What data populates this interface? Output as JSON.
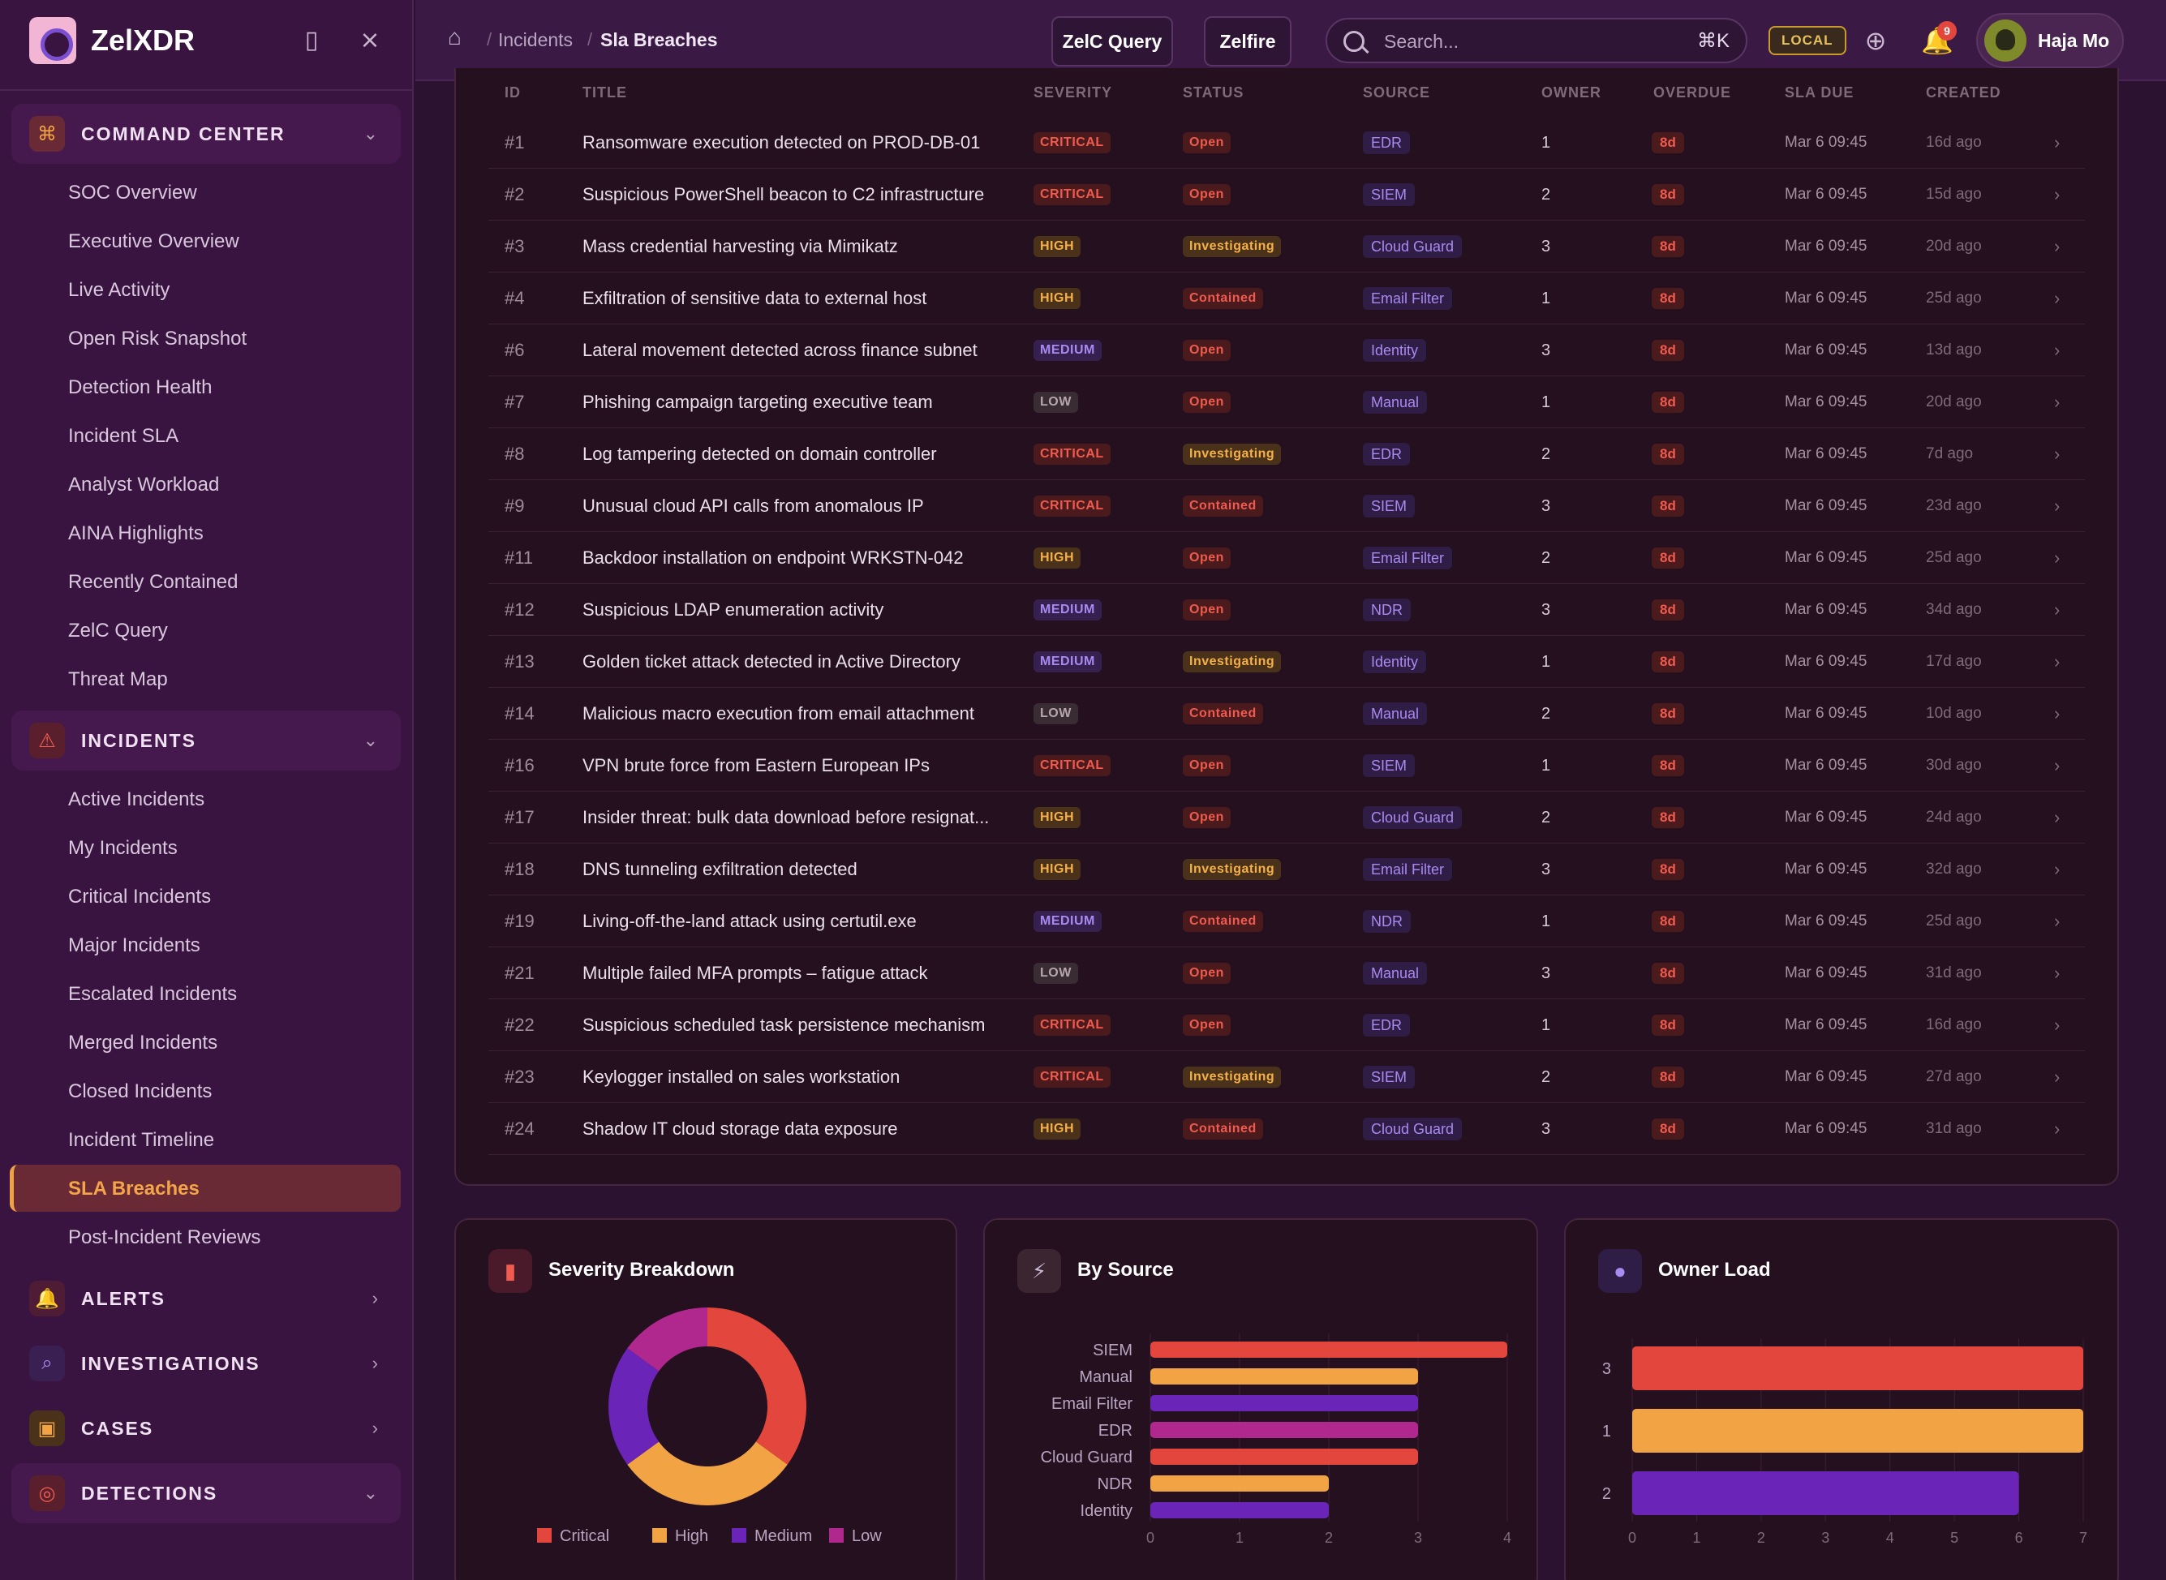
{
  "brand": {
    "name": "ZelXDR"
  },
  "breadcrumb": {
    "section": "Incidents",
    "current": "Sla Breaches"
  },
  "topbar": {
    "query_button": "ZelC Query",
    "zelfire_button": "Zelfire",
    "search_placeholder": "Search...",
    "search_shortcut": "⌘K",
    "env_badge": "LOCAL",
    "notification_count": "9",
    "user_name": "Haja Mo"
  },
  "sidebar": {
    "command_center": {
      "label": "COMMAND CENTER",
      "items": [
        "SOC Overview",
        "Executive Overview",
        "Live Activity",
        "Open Risk Snapshot",
        "Detection Health",
        "Incident SLA",
        "Analyst Workload",
        "AINA Highlights",
        "Recently Contained",
        "ZelC Query",
        "Threat Map"
      ]
    },
    "incidents": {
      "label": "INCIDENTS",
      "items": [
        "Active Incidents",
        "My Incidents",
        "Critical Incidents",
        "Major Incidents",
        "Escalated Incidents",
        "Merged Incidents",
        "Closed Incidents",
        "Incident Timeline",
        "SLA Breaches",
        "Post-Incident Reviews"
      ],
      "active": "SLA Breaches"
    },
    "alerts": {
      "label": "ALERTS"
    },
    "investigations": {
      "label": "INVESTIGATIONS"
    },
    "cases": {
      "label": "CASES"
    },
    "detections": {
      "label": "DETECTIONS"
    }
  },
  "table": {
    "columns": [
      "ID",
      "TITLE",
      "SEVERITY",
      "STATUS",
      "SOURCE",
      "OWNER",
      "OVERDUE",
      "SLA DUE",
      "CREATED"
    ],
    "rows": [
      {
        "id": "#1",
        "title": "Ransomware execution detected on PROD-DB-01",
        "severity": "CRITICAL",
        "status": "Open",
        "source": "EDR",
        "owner": "1",
        "overdue": "8d",
        "due": "Mar 6 09:45",
        "created": "16d ago"
      },
      {
        "id": "#2",
        "title": "Suspicious PowerShell beacon to C2 infrastructure",
        "severity": "CRITICAL",
        "status": "Open",
        "source": "SIEM",
        "owner": "2",
        "overdue": "8d",
        "due": "Mar 6 09:45",
        "created": "15d ago"
      },
      {
        "id": "#3",
        "title": "Mass credential harvesting via Mimikatz",
        "severity": "HIGH",
        "status": "Investigating",
        "source": "Cloud Guard",
        "owner": "3",
        "overdue": "8d",
        "due": "Mar 6 09:45",
        "created": "20d ago"
      },
      {
        "id": "#4",
        "title": "Exfiltration of sensitive data to external host",
        "severity": "HIGH",
        "status": "Contained",
        "source": "Email Filter",
        "owner": "1",
        "overdue": "8d",
        "due": "Mar 6 09:45",
        "created": "25d ago"
      },
      {
        "id": "#6",
        "title": "Lateral movement detected across finance subnet",
        "severity": "MEDIUM",
        "status": "Open",
        "source": "Identity",
        "owner": "3",
        "overdue": "8d",
        "due": "Mar 6 09:45",
        "created": "13d ago"
      },
      {
        "id": "#7",
        "title": "Phishing campaign targeting executive team",
        "severity": "LOW",
        "status": "Open",
        "source": "Manual",
        "owner": "1",
        "overdue": "8d",
        "due": "Mar 6 09:45",
        "created": "20d ago"
      },
      {
        "id": "#8",
        "title": "Log tampering detected on domain controller",
        "severity": "CRITICAL",
        "status": "Investigating",
        "source": "EDR",
        "owner": "2",
        "overdue": "8d",
        "due": "Mar 6 09:45",
        "created": "7d ago"
      },
      {
        "id": "#9",
        "title": "Unusual cloud API calls from anomalous IP",
        "severity": "CRITICAL",
        "status": "Contained",
        "source": "SIEM",
        "owner": "3",
        "overdue": "8d",
        "due": "Mar 6 09:45",
        "created": "23d ago"
      },
      {
        "id": "#11",
        "title": "Backdoor installation on endpoint WRKSTN-042",
        "severity": "HIGH",
        "status": "Open",
        "source": "Email Filter",
        "owner": "2",
        "overdue": "8d",
        "due": "Mar 6 09:45",
        "created": "25d ago"
      },
      {
        "id": "#12",
        "title": "Suspicious LDAP enumeration activity",
        "severity": "MEDIUM",
        "status": "Open",
        "source": "NDR",
        "owner": "3",
        "overdue": "8d",
        "due": "Mar 6 09:45",
        "created": "34d ago"
      },
      {
        "id": "#13",
        "title": "Golden ticket attack detected in Active Directory",
        "severity": "MEDIUM",
        "status": "Investigating",
        "source": "Identity",
        "owner": "1",
        "overdue": "8d",
        "due": "Mar 6 09:45",
        "created": "17d ago"
      },
      {
        "id": "#14",
        "title": "Malicious macro execution from email attachment",
        "severity": "LOW",
        "status": "Contained",
        "source": "Manual",
        "owner": "2",
        "overdue": "8d",
        "due": "Mar 6 09:45",
        "created": "10d ago"
      },
      {
        "id": "#16",
        "title": "VPN brute force from Eastern European IPs",
        "severity": "CRITICAL",
        "status": "Open",
        "source": "SIEM",
        "owner": "1",
        "overdue": "8d",
        "due": "Mar 6 09:45",
        "created": "30d ago"
      },
      {
        "id": "#17",
        "title": "Insider threat: bulk data download before resignat...",
        "severity": "HIGH",
        "status": "Open",
        "source": "Cloud Guard",
        "owner": "2",
        "overdue": "8d",
        "due": "Mar 6 09:45",
        "created": "24d ago"
      },
      {
        "id": "#18",
        "title": "DNS tunneling exfiltration detected",
        "severity": "HIGH",
        "status": "Investigating",
        "source": "Email Filter",
        "owner": "3",
        "overdue": "8d",
        "due": "Mar 6 09:45",
        "created": "32d ago"
      },
      {
        "id": "#19",
        "title": "Living-off-the-land attack using certutil.exe",
        "severity": "MEDIUM",
        "status": "Contained",
        "source": "NDR",
        "owner": "1",
        "overdue": "8d",
        "due": "Mar 6 09:45",
        "created": "25d ago"
      },
      {
        "id": "#21",
        "title": "Multiple failed MFA prompts – fatigue attack",
        "severity": "LOW",
        "status": "Open",
        "source": "Manual",
        "owner": "3",
        "overdue": "8d",
        "due": "Mar 6 09:45",
        "created": "31d ago"
      },
      {
        "id": "#22",
        "title": "Suspicious scheduled task persistence mechanism",
        "severity": "CRITICAL",
        "status": "Open",
        "source": "EDR",
        "owner": "1",
        "overdue": "8d",
        "due": "Mar 6 09:45",
        "created": "16d ago"
      },
      {
        "id": "#23",
        "title": "Keylogger installed on sales workstation",
        "severity": "CRITICAL",
        "status": "Investigating",
        "source": "SIEM",
        "owner": "2",
        "overdue": "8d",
        "due": "Mar 6 09:45",
        "created": "27d ago"
      },
      {
        "id": "#24",
        "title": "Shadow IT cloud storage data exposure",
        "severity": "HIGH",
        "status": "Contained",
        "source": "Cloud Guard",
        "owner": "3",
        "overdue": "8d",
        "due": "Mar 6 09:45",
        "created": "31d ago"
      }
    ]
  },
  "cards": {
    "severity": {
      "title": "Severity Breakdown",
      "icon": "bar-chart-icon"
    },
    "source": {
      "title": "By Source",
      "icon": "plug-icon"
    },
    "owner": {
      "title": "Owner Load",
      "icon": "user-icon"
    }
  },
  "colors": {
    "critical": "#e2463c",
    "high": "#f2a444",
    "medium": "#6a24b8",
    "low": "#b0288e"
  },
  "chart_data": [
    {
      "type": "pie",
      "title": "Severity Breakdown",
      "categories": [
        "Critical",
        "High",
        "Medium",
        "Low"
      ],
      "values": [
        7,
        6,
        4,
        3
      ],
      "legend": "bottom"
    },
    {
      "type": "bar",
      "title": "By Source",
      "orientation": "horizontal",
      "categories": [
        "SIEM",
        "Manual",
        "Email Filter",
        "EDR",
        "Cloud Guard",
        "NDR",
        "Identity"
      ],
      "values": [
        4,
        3,
        3,
        3,
        3,
        2,
        2
      ],
      "xlim": [
        0,
        4
      ],
      "xticks": [
        "0",
        "1",
        "2",
        "3",
        "4"
      ]
    },
    {
      "type": "bar",
      "title": "Owner Load",
      "orientation": "horizontal",
      "categories": [
        "3",
        "1",
        "2"
      ],
      "values": [
        7,
        7,
        6
      ],
      "xlim": [
        0,
        7
      ],
      "xticks": [
        "0",
        "1",
        "2",
        "3",
        "4",
        "5",
        "6",
        "7"
      ]
    }
  ]
}
